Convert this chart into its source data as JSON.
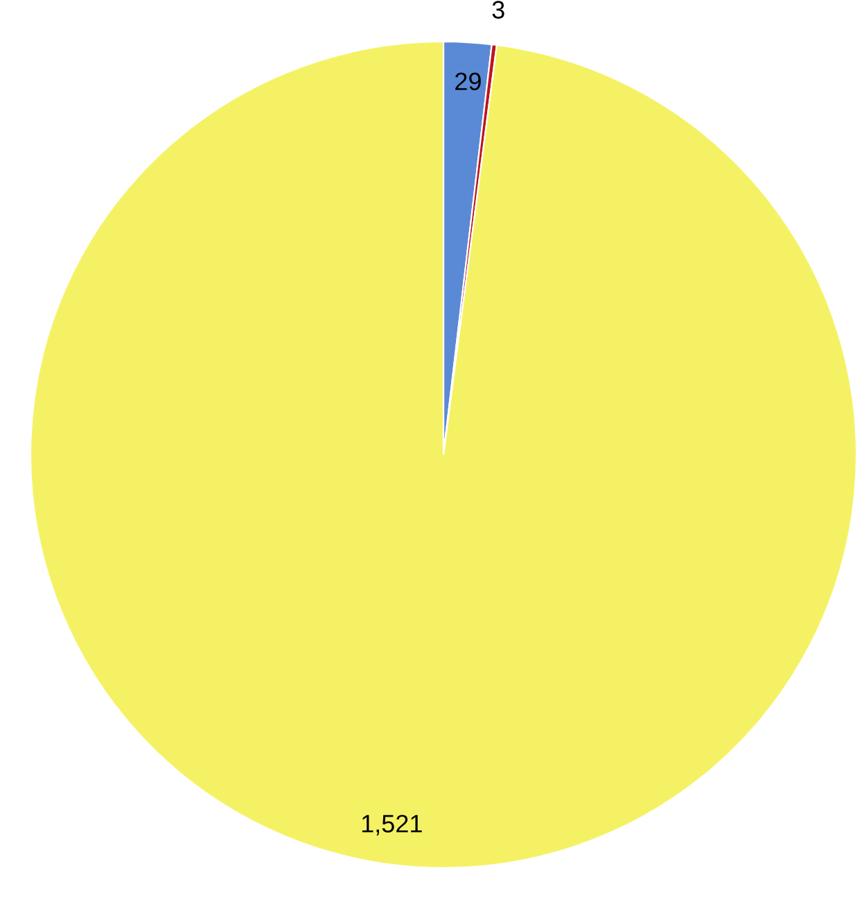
{
  "chart_data": {
    "type": "pie",
    "categories": [
      null,
      null,
      null
    ],
    "values": [
      29,
      3,
      1521
    ],
    "colors": [
      "#5a8ad6",
      "#c0141c",
      "#f4f264"
    ],
    "value_labels": [
      "29",
      "3",
      "1,521"
    ],
    "legend": false
  }
}
